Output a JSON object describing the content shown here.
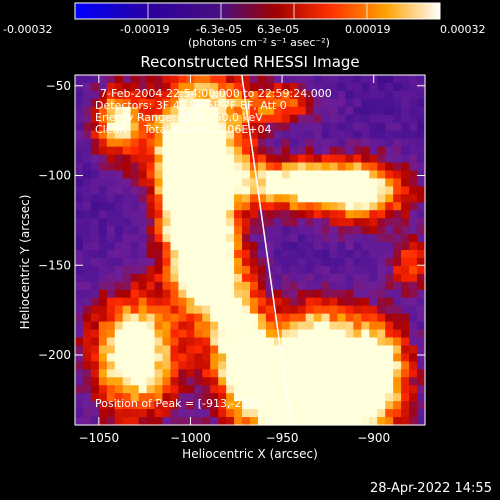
{
  "chart_data": {
    "type": "heatmap",
    "title": "Reconstructed RHESSI Image",
    "xlabel": "Heliocentric X (arcsec)",
    "ylabel": "Heliocentric Y (arcsec)",
    "xlim": [
      -1063,
      -872
    ],
    "ylim": [
      -239,
      -44
    ],
    "xticks": [
      -1050,
      -1000,
      -950,
      -900
    ],
    "yticks": [
      -50,
      -100,
      -150,
      -200
    ],
    "colorbar": {
      "ticks": [
        "-0.00032",
        "-0.00019",
        "-6.3e-05",
        "6.3e-05",
        "0.00019",
        "0.00032"
      ],
      "unit": "(photons cm⁻² s⁻¹ asec⁻²)",
      "range": [
        -0.00032,
        0.00032
      ]
    },
    "annotations": [
      "7-Feb-2004 22:54:00.000 to 22:59:24.000",
      "Detectors: 3F 4F 5F 6F 7F 8F, Att 0",
      "Energy Range: 25.0 - 50.0 keV",
      "Clean     Total counts: 1.06E+04"
    ],
    "peak_label": "Position of Peak = [-913,-232]",
    "peak": {
      "x": -913,
      "y": -232
    },
    "limb_line": [
      [
        -972,
        -44
      ],
      [
        -945,
        -239
      ]
    ],
    "emission_blobs": [
      {
        "x": -1040,
        "y": -70,
        "sx": 10,
        "sy": 14,
        "a": 0.7
      },
      {
        "x": -995,
        "y": -80,
        "sx": 20,
        "sy": 30,
        "a": 0.9
      },
      {
        "x": -1000,
        "y": -120,
        "sx": 12,
        "sy": 25,
        "a": 0.8
      },
      {
        "x": -990,
        "y": -150,
        "sx": 12,
        "sy": 20,
        "a": 0.8
      },
      {
        "x": -975,
        "y": -190,
        "sx": 12,
        "sy": 25,
        "a": 0.7
      },
      {
        "x": -1030,
        "y": -200,
        "sx": 18,
        "sy": 25,
        "a": 0.9
      },
      {
        "x": -960,
        "y": -225,
        "sx": 15,
        "sy": 20,
        "a": 0.6
      },
      {
        "x": -940,
        "y": -105,
        "sx": 25,
        "sy": 10,
        "a": 0.8
      },
      {
        "x": -905,
        "y": -110,
        "sx": 20,
        "sy": 14,
        "a": 0.6
      },
      {
        "x": -920,
        "y": -230,
        "sx": 20,
        "sy": 18,
        "a": 1.0
      },
      {
        "x": -930,
        "y": -195,
        "sx": 20,
        "sy": 18,
        "a": 0.85
      },
      {
        "x": -895,
        "y": -205,
        "sx": 12,
        "sy": 18,
        "a": 0.6
      },
      {
        "x": -950,
        "y": -60,
        "sx": 15,
        "sy": 8,
        "a": 0.5
      },
      {
        "x": -880,
        "y": -150,
        "sx": 8,
        "sy": 10,
        "a": 0.5
      }
    ]
  },
  "footer": {
    "timestamp": "28-Apr-2022 14:55"
  }
}
